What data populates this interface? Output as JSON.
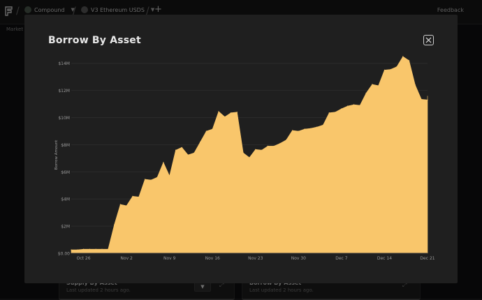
{
  "topbar": {
    "crumbs": [
      {
        "label": "Compound",
        "color": "#4c5a4f"
      },
      {
        "label": "V3 Ethereum USDS",
        "color": "#5a5a5a"
      }
    ],
    "feedback_label": "Feedback"
  },
  "subnav": {
    "label": "Market"
  },
  "background_cards": [
    {
      "title": "Supply By Asset",
      "subtitle": "Last updated 2 hours ago."
    },
    {
      "title": "Borrow By Asset",
      "subtitle": "Last updated 2 hours ago."
    }
  ],
  "modal": {
    "title": "Borrow By Asset"
  },
  "chart_data": {
    "type": "area",
    "title": "Borrow By Asset",
    "ylabel": "Borrow Amount",
    "xlabel": "",
    "color": "#f9c66b",
    "ylim": [
      0,
      14500000
    ],
    "yticks": [
      {
        "value": 0,
        "label": "$0.00"
      },
      {
        "value": 2000000,
        "label": "$2M"
      },
      {
        "value": 4000000,
        "label": "$4M"
      },
      {
        "value": 6000000,
        "label": "$6M"
      },
      {
        "value": 8000000,
        "label": "$8M"
      },
      {
        "value": 10000000,
        "label": "$10M"
      },
      {
        "value": 12000000,
        "label": "$12M"
      },
      {
        "value": 14000000,
        "label": "$14M"
      }
    ],
    "xticks": [
      {
        "date": "2024-10-26",
        "label": "Oct 26"
      },
      {
        "date": "2024-11-02",
        "label": "Nov 2"
      },
      {
        "date": "2024-11-09",
        "label": "Nov 9"
      },
      {
        "date": "2024-11-16",
        "label": "Nov 16"
      },
      {
        "date": "2024-11-23",
        "label": "Nov 23"
      },
      {
        "date": "2024-11-30",
        "label": "Nov 30"
      },
      {
        "date": "2024-12-07",
        "label": "Dec 7"
      },
      {
        "date": "2024-12-14",
        "label": "Dec 14"
      },
      {
        "date": "2024-12-21",
        "label": "Dec 21"
      }
    ],
    "xrange": [
      "2024-10-24",
      "2024-12-21"
    ],
    "grid": true,
    "points": [
      [
        "2024-10-24",
        250000
      ],
      [
        "2024-10-25",
        250000
      ],
      [
        "2024-10-26",
        300000
      ],
      [
        "2024-10-27",
        300000
      ],
      [
        "2024-10-28",
        300000
      ],
      [
        "2024-10-29",
        300000
      ],
      [
        "2024-10-30",
        300000
      ],
      [
        "2024-10-31",
        2100000
      ],
      [
        "2024-11-01",
        3600000
      ],
      [
        "2024-11-02",
        3500000
      ],
      [
        "2024-11-03",
        4200000
      ],
      [
        "2024-11-04",
        4150000
      ],
      [
        "2024-11-05",
        5450000
      ],
      [
        "2024-11-06",
        5400000
      ],
      [
        "2024-11-07",
        5600000
      ],
      [
        "2024-11-08",
        6700000
      ],
      [
        "2024-11-09",
        5700000
      ],
      [
        "2024-11-10",
        7600000
      ],
      [
        "2024-11-11",
        7800000
      ],
      [
        "2024-11-12",
        7250000
      ],
      [
        "2024-11-13",
        7400000
      ],
      [
        "2024-11-14",
        8200000
      ],
      [
        "2024-11-15",
        9000000
      ],
      [
        "2024-11-16",
        9150000
      ],
      [
        "2024-11-17",
        10450000
      ],
      [
        "2024-11-18",
        10050000
      ],
      [
        "2024-11-19",
        10350000
      ],
      [
        "2024-11-20",
        10400000
      ],
      [
        "2024-11-21",
        7400000
      ],
      [
        "2024-11-22",
        7050000
      ],
      [
        "2024-11-23",
        7650000
      ],
      [
        "2024-11-24",
        7600000
      ],
      [
        "2024-11-25",
        7900000
      ],
      [
        "2024-11-26",
        7900000
      ],
      [
        "2024-11-27",
        8100000
      ],
      [
        "2024-11-28",
        8350000
      ],
      [
        "2024-11-29",
        9050000
      ],
      [
        "2024-11-30",
        9000000
      ],
      [
        "2024-12-01",
        9150000
      ],
      [
        "2024-12-02",
        9200000
      ],
      [
        "2024-12-03",
        9300000
      ],
      [
        "2024-12-04",
        9450000
      ],
      [
        "2024-12-05",
        10350000
      ],
      [
        "2024-12-06",
        10400000
      ],
      [
        "2024-12-07",
        10650000
      ],
      [
        "2024-12-08",
        10850000
      ],
      [
        "2024-12-09",
        10950000
      ],
      [
        "2024-12-10",
        10900000
      ],
      [
        "2024-12-11",
        11800000
      ],
      [
        "2024-12-12",
        12450000
      ],
      [
        "2024-12-13",
        12350000
      ],
      [
        "2024-12-14",
        13500000
      ],
      [
        "2024-12-15",
        13550000
      ],
      [
        "2024-12-16",
        13750000
      ],
      [
        "2024-12-17",
        14500000
      ],
      [
        "2024-12-18",
        14200000
      ],
      [
        "2024-12-19",
        12400000
      ],
      [
        "2024-12-20",
        11350000
      ],
      [
        "2024-12-21",
        11300000
      ],
      [
        "2024-12-22",
        11600000
      ],
      [
        "2024-12-23",
        11600000
      ]
    ]
  }
}
